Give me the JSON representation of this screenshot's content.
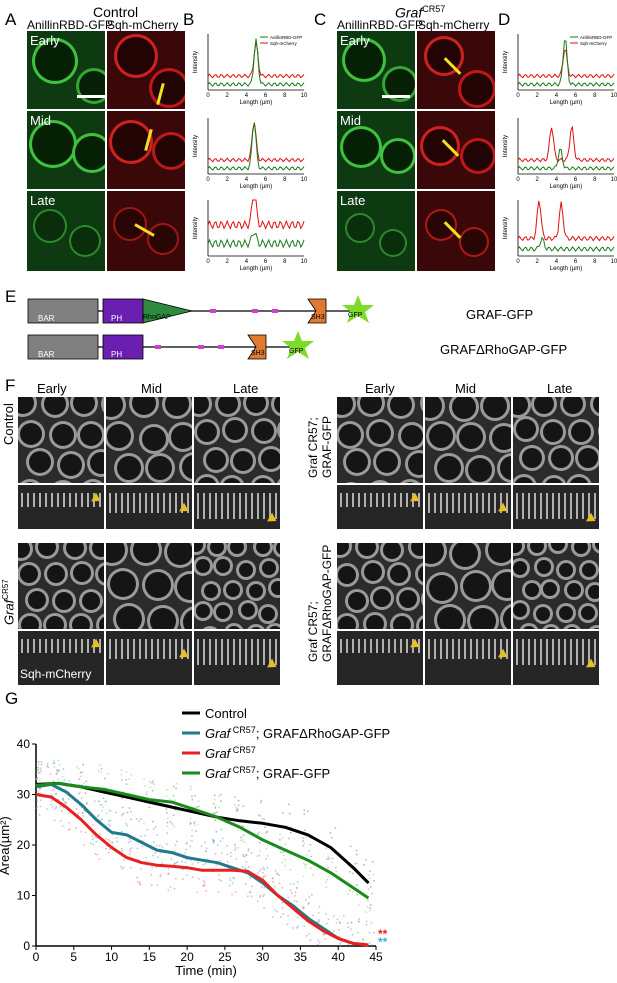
{
  "panels": {
    "A": "A",
    "B": "B",
    "C": "C",
    "D": "D",
    "E": "E",
    "F": "F",
    "G": "G"
  },
  "top": {
    "control_title": "Control",
    "graf_title_main": "Graf",
    "graf_title_sup": "CR57",
    "col_anillin": "AnillinRBD-GFP",
    "col_sqh": "Sqh-mCherry",
    "stages": [
      "Early",
      "Mid",
      "Late"
    ]
  },
  "mini_chart": {
    "ylabel": "Intensity",
    "xlabel": "Length (µm)",
    "legend": [
      "AnillinRBD-GFP",
      "Sqh-mCherry"
    ],
    "colors": {
      "green": "#1a7a1a",
      "red": "#e01010"
    }
  },
  "diagram": {
    "row1": {
      "domains": [
        "BAR",
        "PH",
        "RhoGAP",
        "SH3",
        "GFP"
      ],
      "name": "GRAF-GFP"
    },
    "row2": {
      "domains": [
        "BAR",
        "PH",
        "SH3",
        "GFP"
      ],
      "name": "GRAFΔRhoGAP-GFP"
    },
    "colors": {
      "bar": "#808080",
      "ph": "#6a1fb0",
      "rhogap": "#2e8b3e",
      "sh3": "#e07a30",
      "gfp": "#7ddb2a",
      "linker": "#d040d0"
    }
  },
  "panelF": {
    "cols": [
      "Early",
      "Mid",
      "Late"
    ],
    "rows_left": [
      "Control",
      "Graf CR57"
    ],
    "rows_right_top": [
      "Graf CR57;",
      "GRAF-GFP"
    ],
    "rows_right_bottom": [
      "Graf CR57;",
      "GRAFΔRhoGAP-GFP"
    ],
    "sqh_label": "Sqh-mCherry",
    "left_row2_main": "Graf",
    "left_row2_sup": "CR57"
  },
  "chart_data": {
    "type": "line",
    "xlabel": "Time (min)",
    "ylabel": "Area(µm²)",
    "xlim": [
      0,
      45
    ],
    "ylim": [
      0,
      40
    ],
    "xticks": [
      0,
      5,
      10,
      15,
      20,
      25,
      30,
      35,
      40,
      45
    ],
    "yticks": [
      0,
      10,
      20,
      30,
      40
    ],
    "legend": [
      {
        "name": "Control",
        "color": "#000000"
      },
      {
        "name": "Graf CR57; GRAFΔRhoGAP-GFP",
        "color": "#1f7a8c",
        "italic_prefix": "Graf",
        "sup": "CR57",
        "rest": "; GRAFΔRhoGAP-GFP"
      },
      {
        "name": "Graf CR57",
        "color": "#e82020",
        "italic_prefix": "Graf",
        "sup": "CR57",
        "rest": ""
      },
      {
        "name": "Graf CR57; GRAF-GFP",
        "color": "#1a8a1a",
        "italic_prefix": "Graf",
        "sup": "CR57",
        "rest": "; GRAF-GFP"
      }
    ],
    "series": [
      {
        "name": "Control",
        "color": "#000000",
        "x": [
          0,
          3,
          6,
          9,
          12,
          15,
          18,
          21,
          24,
          27,
          30,
          33,
          36,
          39,
          42,
          44
        ],
        "y": [
          32,
          32.2,
          31.5,
          30.5,
          29.5,
          28.5,
          27.5,
          26.5,
          25.5,
          24.8,
          24.3,
          23.5,
          22,
          19.5,
          15.5,
          12.5
        ]
      },
      {
        "name": "Graf CR57; GRAFΔRhoGAP-GFP",
        "color": "#1f7a8c",
        "x": [
          0,
          2,
          4,
          6,
          8,
          10,
          12,
          14,
          16,
          18,
          20,
          22,
          24,
          26,
          28,
          30,
          32,
          34,
          36,
          38,
          40,
          42,
          44
        ],
        "y": [
          31.5,
          32,
          30.5,
          28,
          25,
          22.5,
          22,
          20.5,
          19,
          18.5,
          17.5,
          17,
          16.5,
          15.5,
          14.5,
          12.5,
          10,
          8,
          5.5,
          3.5,
          1.5,
          0.5,
          0.2
        ]
      },
      {
        "name": "Graf CR57",
        "color": "#e82020",
        "x": [
          0,
          2,
          4,
          6,
          8,
          10,
          12,
          14,
          16,
          18,
          20,
          22,
          24,
          26,
          28,
          30,
          32,
          34,
          36,
          38,
          40,
          42,
          44
        ],
        "y": [
          30,
          29.5,
          27.5,
          25,
          22,
          19.5,
          17.5,
          16.5,
          16,
          15.8,
          15.5,
          15,
          15,
          15,
          14.8,
          13,
          10,
          7.5,
          5,
          3,
          1.5,
          0.5,
          0.2
        ]
      },
      {
        "name": "Graf CR57; GRAF-GFP",
        "color": "#1a8a1a",
        "x": [
          0,
          3,
          6,
          9,
          12,
          15,
          18,
          21,
          24,
          27,
          30,
          33,
          36,
          39,
          42,
          44
        ],
        "y": [
          31.8,
          32.2,
          31.5,
          31,
          30,
          29,
          28.5,
          27,
          25.5,
          23.5,
          21,
          19,
          17,
          14.5,
          11.5,
          9.5
        ]
      }
    ],
    "significance": [
      {
        "text": "**",
        "color": "#e82020"
      },
      {
        "text": "**",
        "color": "#3ab0d8"
      }
    ]
  }
}
